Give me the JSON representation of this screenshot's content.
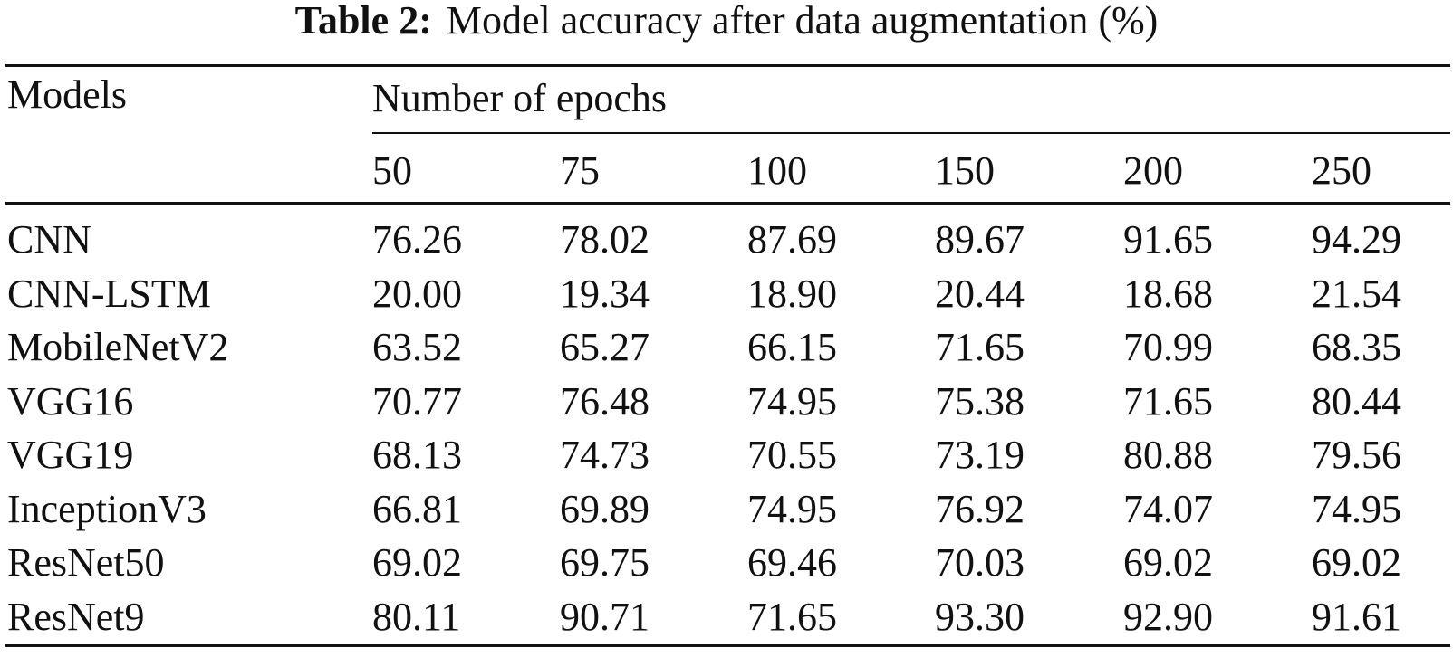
{
  "caption": {
    "label": "Table 2:",
    "text": "Model accuracy after data augmentation (%)"
  },
  "table": {
    "row_header": "Models",
    "group_header": "Number of epochs",
    "epochs": [
      "50",
      "75",
      "100",
      "150",
      "200",
      "250"
    ],
    "rows": [
      {
        "model": "CNN",
        "values": [
          "76.26",
          "78.02",
          "87.69",
          "89.67",
          "91.65",
          "94.29"
        ]
      },
      {
        "model": "CNN-LSTM",
        "values": [
          "20.00",
          "19.34",
          "18.90",
          "20.44",
          "18.68",
          "21.54"
        ]
      },
      {
        "model": "MobileNetV2",
        "values": [
          "63.52",
          "65.27",
          "66.15",
          "71.65",
          "70.99",
          "68.35"
        ]
      },
      {
        "model": "VGG16",
        "values": [
          "70.77",
          "76.48",
          "74.95",
          "75.38",
          "71.65",
          "80.44"
        ]
      },
      {
        "model": "VGG19",
        "values": [
          "68.13",
          "74.73",
          "70.55",
          "73.19",
          "80.88",
          "79.56"
        ]
      },
      {
        "model": "InceptionV3",
        "values": [
          "66.81",
          "69.89",
          "74.95",
          "76.92",
          "74.07",
          "74.95"
        ]
      },
      {
        "model": "ResNet50",
        "values": [
          "69.02",
          "69.75",
          "69.46",
          "70.03",
          "69.02",
          "69.02"
        ]
      },
      {
        "model": "ResNet9",
        "values": [
          "80.11",
          "90.71",
          "71.65",
          "93.30",
          "92.90",
          "91.61"
        ]
      }
    ]
  }
}
